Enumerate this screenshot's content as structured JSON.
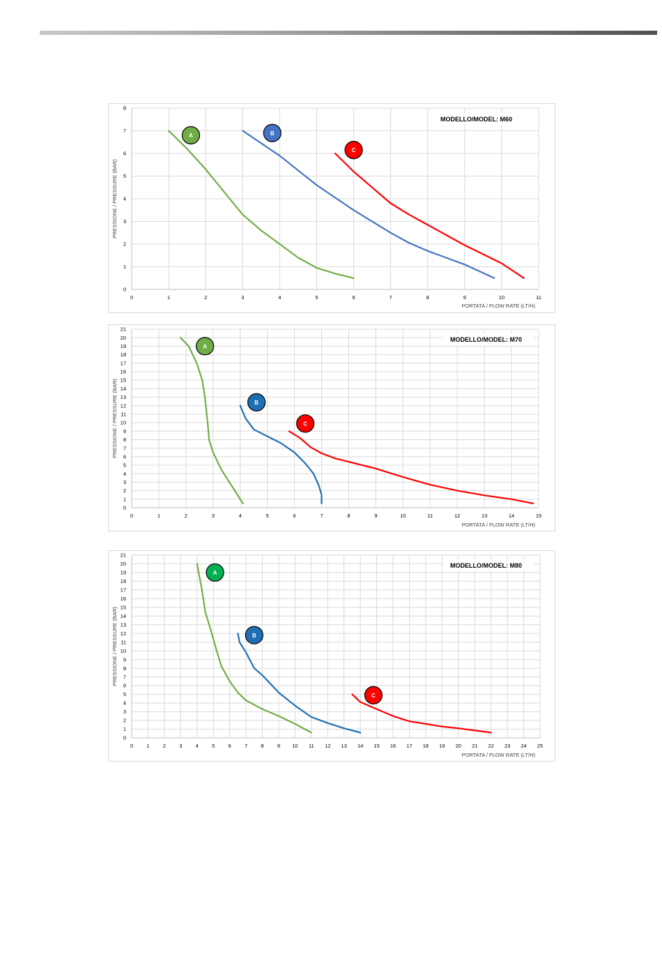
{
  "chart_data": [
    {
      "type": "line",
      "title": "MODELLO/MODEL: M60",
      "xlabel": "PORTATA / FLOW RATE (LT/H)",
      "ylabel": "PRESSIONE / PRESSURE (BAR)",
      "xlim": [
        0,
        11
      ],
      "ylim": [
        0,
        8
      ],
      "xticks": [
        "0",
        "1",
        "2",
        "3",
        "4",
        "5",
        "6",
        "7",
        "8",
        "9",
        "10",
        "11"
      ],
      "yticks": [
        "0",
        "1",
        "2",
        "3",
        "4",
        "5",
        "6",
        "7",
        "8"
      ],
      "grid": true,
      "series": [
        {
          "name": "A",
          "color": "#70ad47",
          "label_at": [
            1.6,
            6.8
          ],
          "points": [
            [
              1.0,
              7.0
            ],
            [
              1.5,
              6.2
            ],
            [
              2.0,
              5.3
            ],
            [
              2.5,
              4.3
            ],
            [
              3.0,
              3.3
            ],
            [
              3.5,
              2.6
            ],
            [
              4.0,
              2.0
            ],
            [
              4.5,
              1.4
            ],
            [
              5.0,
              0.95
            ],
            [
              5.5,
              0.7
            ],
            [
              6.0,
              0.5
            ]
          ]
        },
        {
          "name": "B",
          "color": "#4472c4",
          "label_at": [
            3.8,
            6.9
          ],
          "points": [
            [
              3.0,
              7.0
            ],
            [
              4.0,
              5.9
            ],
            [
              5.0,
              4.6
            ],
            [
              6.0,
              3.5
            ],
            [
              7.0,
              2.5
            ],
            [
              7.5,
              2.05
            ],
            [
              8.0,
              1.7
            ],
            [
              9.0,
              1.1
            ],
            [
              9.8,
              0.5
            ]
          ]
        },
        {
          "name": "C",
          "color": "#ff0000",
          "label_at": [
            6.0,
            6.15
          ],
          "points": [
            [
              5.5,
              6.0
            ],
            [
              6.0,
              5.2
            ],
            [
              6.5,
              4.5
            ],
            [
              7.0,
              3.8
            ],
            [
              7.5,
              3.3
            ],
            [
              8.0,
              2.85
            ],
            [
              8.5,
              2.4
            ],
            [
              9.0,
              1.95
            ],
            [
              9.5,
              1.55
            ],
            [
              10.0,
              1.15
            ],
            [
              10.6,
              0.5
            ]
          ]
        }
      ]
    },
    {
      "type": "line",
      "title": "MODELLO/MODEL: M70",
      "xlabel": "PORTATA / FLOW RATE (LT/H)",
      "ylabel": "PRESSIONE / PRESSURE (BAR)",
      "xlim": [
        0,
        15
      ],
      "ylim": [
        0,
        21
      ],
      "xticks": [
        "0",
        "1",
        "2",
        "3",
        "4",
        "5",
        "6",
        "7",
        "8",
        "9",
        "10",
        "11",
        "12",
        "13",
        "14",
        "15"
      ],
      "yticks": [
        "0",
        "1",
        "2",
        "3",
        "4",
        "5",
        "6",
        "7",
        "8",
        "9",
        "10",
        "11",
        "12",
        "13",
        "14",
        "15",
        "16",
        "17",
        "18",
        "19",
        "20",
        "21"
      ],
      "grid": true,
      "series": [
        {
          "name": "A",
          "color": "#70ad47",
          "label_at": [
            2.7,
            19.0
          ],
          "points": [
            [
              1.8,
              20.0
            ],
            [
              2.1,
              19.0
            ],
            [
              2.4,
              17.0
            ],
            [
              2.6,
              15.0
            ],
            [
              2.7,
              13.0
            ],
            [
              2.8,
              10.0
            ],
            [
              2.85,
              8.0
            ],
            [
              3.0,
              6.5
            ],
            [
              3.3,
              4.5
            ],
            [
              3.7,
              2.5
            ],
            [
              4.1,
              0.5
            ]
          ]
        },
        {
          "name": "B",
          "color": "#1f6fb5",
          "label_at": [
            4.6,
            12.4
          ],
          "points": [
            [
              4.0,
              12.0
            ],
            [
              4.2,
              10.5
            ],
            [
              4.5,
              9.2
            ],
            [
              5.0,
              8.4
            ],
            [
              5.5,
              7.6
            ],
            [
              6.0,
              6.5
            ],
            [
              6.4,
              5.2
            ],
            [
              6.7,
              4.0
            ],
            [
              6.9,
              2.6
            ],
            [
              7.0,
              1.5
            ],
            [
              7.0,
              0.5
            ]
          ]
        },
        {
          "name": "C",
          "color": "#ff0000",
          "label_at": [
            6.4,
            9.9
          ],
          "points": [
            [
              5.8,
              9.0
            ],
            [
              6.2,
              8.2
            ],
            [
              6.6,
              7.1
            ],
            [
              7.0,
              6.4
            ],
            [
              7.5,
              5.8
            ],
            [
              8.0,
              5.4
            ],
            [
              9.0,
              4.6
            ],
            [
              10.0,
              3.6
            ],
            [
              11.0,
              2.7
            ],
            [
              12.0,
              2.0
            ],
            [
              13.0,
              1.45
            ],
            [
              14.0,
              1.0
            ],
            [
              14.8,
              0.5
            ]
          ]
        }
      ]
    },
    {
      "type": "line",
      "title": "MODELLO/MODEL: M80",
      "xlabel": "PORTATA / FLOW RATE (LT/H)",
      "ylabel": "PRESSIONE / PRESSURE (BAR)",
      "xlim": [
        0,
        25
      ],
      "ylim": [
        0,
        21
      ],
      "xticks": [
        "0",
        "1",
        "2",
        "3",
        "4",
        "5",
        "6",
        "7",
        "8",
        "9",
        "10",
        "11",
        "12",
        "13",
        "14",
        "15",
        "16",
        "17",
        "18",
        "19",
        "20",
        "21",
        "22",
        "23",
        "24",
        "25"
      ],
      "yticks": [
        "0",
        "1",
        "2",
        "3",
        "4",
        "5",
        "6",
        "7",
        "8",
        "9",
        "10",
        "11",
        "12",
        "13",
        "14",
        "15",
        "16",
        "17",
        "18",
        "19",
        "20",
        "21"
      ],
      "grid": true,
      "series": [
        {
          "name": "A",
          "color": "#00b050",
          "marker_color": "#00b050",
          "line_color": "#70ad47",
          "label_at": [
            5.1,
            19.0
          ],
          "points": [
            [
              4.0,
              20.0
            ],
            [
              4.3,
              17.0
            ],
            [
              4.5,
              14.5
            ],
            [
              4.9,
              12.0
            ],
            [
              5.2,
              10.0
            ],
            [
              5.5,
              8.2
            ],
            [
              6.0,
              6.5
            ],
            [
              6.5,
              5.2
            ],
            [
              7.0,
              4.3
            ],
            [
              8.0,
              3.3
            ],
            [
              9.0,
              2.5
            ],
            [
              10.0,
              1.6
            ],
            [
              11.0,
              0.6
            ]
          ]
        },
        {
          "name": "B",
          "color": "#1f6fb5",
          "label_at": [
            7.5,
            11.8
          ],
          "points": [
            [
              6.5,
              12.0
            ],
            [
              6.6,
              11.0
            ],
            [
              7.0,
              9.8
            ],
            [
              7.5,
              8.0
            ],
            [
              8.0,
              7.2
            ],
            [
              9.0,
              5.2
            ],
            [
              10.0,
              3.7
            ],
            [
              11.0,
              2.4
            ],
            [
              12.0,
              1.7
            ],
            [
              13.0,
              1.1
            ],
            [
              14.0,
              0.6
            ]
          ]
        },
        {
          "name": "C",
          "color": "#ff0000",
          "label_at": [
            14.8,
            4.9
          ],
          "points": [
            [
              13.5,
              5.0
            ],
            [
              14.0,
              4.1
            ],
            [
              15.0,
              3.3
            ],
            [
              16.0,
              2.5
            ],
            [
              17.0,
              1.9
            ],
            [
              18.0,
              1.6
            ],
            [
              19.0,
              1.3
            ],
            [
              20.0,
              1.1
            ],
            [
              21.0,
              0.85
            ],
            [
              22.0,
              0.6
            ]
          ]
        }
      ]
    }
  ]
}
